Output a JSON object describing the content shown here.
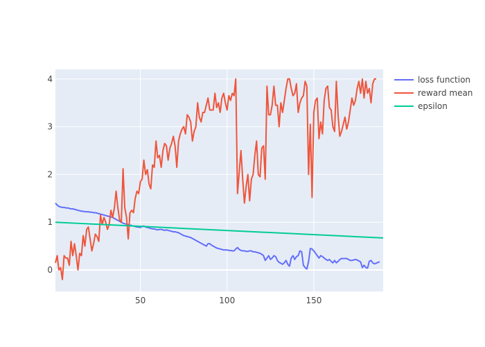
{
  "chart_data": {
    "type": "line",
    "x_start": 1,
    "x_step": 1,
    "xlim": [
      1,
      190
    ],
    "ylim": [
      -0.45,
      4.2
    ],
    "x_ticks": [
      50,
      100,
      150
    ],
    "y_ticks": [
      0,
      1,
      2,
      3,
      4
    ],
    "grid": true,
    "legend_position": "top-right",
    "series": [
      {
        "name": "loss function",
        "color": "#636efa",
        "values": [
          1.4,
          1.36,
          1.33,
          1.32,
          1.31,
          1.31,
          1.3,
          1.3,
          1.29,
          1.28,
          1.28,
          1.27,
          1.26,
          1.25,
          1.24,
          1.23,
          1.23,
          1.22,
          1.22,
          1.22,
          1.21,
          1.21,
          1.2,
          1.2,
          1.19,
          1.18,
          1.17,
          1.16,
          1.15,
          1.14,
          1.13,
          1.12,
          1.11,
          1.1,
          1.08,
          1.06,
          1.04,
          1.02,
          1.0,
          0.98,
          0.97,
          0.96,
          0.95,
          0.94,
          0.93,
          0.92,
          0.91,
          0.9,
          0.9,
          0.89,
          0.91,
          0.92,
          0.9,
          0.89,
          0.88,
          0.87,
          0.86,
          0.86,
          0.85,
          0.84,
          0.85,
          0.85,
          0.84,
          0.83,
          0.84,
          0.83,
          0.82,
          0.81,
          0.8,
          0.8,
          0.79,
          0.78,
          0.76,
          0.74,
          0.72,
          0.71,
          0.7,
          0.69,
          0.68,
          0.66,
          0.64,
          0.62,
          0.6,
          0.58,
          0.56,
          0.54,
          0.52,
          0.5,
          0.55,
          0.55,
          0.52,
          0.5,
          0.48,
          0.46,
          0.45,
          0.44,
          0.43,
          0.42,
          0.42,
          0.42,
          0.41,
          0.41,
          0.4,
          0.4,
          0.44,
          0.47,
          0.43,
          0.41,
          0.4,
          0.4,
          0.39,
          0.39,
          0.4,
          0.4,
          0.38,
          0.38,
          0.37,
          0.36,
          0.35,
          0.33,
          0.3,
          0.2,
          0.25,
          0.3,
          0.22,
          0.25,
          0.3,
          0.28,
          0.2,
          0.16,
          0.14,
          0.12,
          0.15,
          0.2,
          0.12,
          0.08,
          0.25,
          0.3,
          0.22,
          0.28,
          0.3,
          0.4,
          0.38,
          0.1,
          0.05,
          0.02,
          0.18,
          0.45,
          0.44,
          0.4,
          0.35,
          0.3,
          0.25,
          0.3,
          0.28,
          0.25,
          0.22,
          0.2,
          0.22,
          0.18,
          0.15,
          0.2,
          0.15,
          0.18,
          0.22,
          0.24,
          0.24,
          0.24,
          0.24,
          0.22,
          0.2,
          0.2,
          0.21,
          0.22,
          0.21,
          0.19,
          0.17,
          0.05,
          0.1,
          0.05,
          0.04,
          0.18,
          0.2,
          0.15,
          0.13,
          0.14,
          0.16,
          0.17
        ]
      },
      {
        "name": "reward mean",
        "color": "#ef553b",
        "values": [
          0.15,
          0.3,
          0.0,
          0.05,
          -0.2,
          0.3,
          0.25,
          0.25,
          0.1,
          0.6,
          0.3,
          0.55,
          0.3,
          0.0,
          0.35,
          0.3,
          0.72,
          0.5,
          0.85,
          0.9,
          0.65,
          0.4,
          0.55,
          0.75,
          0.7,
          0.6,
          1.15,
          0.95,
          1.1,
          1.0,
          0.85,
          0.95,
          1.25,
          1.1,
          1.3,
          1.65,
          1.3,
          1.05,
          1.0,
          2.12,
          1.3,
          1.1,
          0.65,
          1.2,
          1.25,
          1.2,
          1.5,
          1.65,
          1.6,
          1.85,
          1.9,
          2.3,
          2.0,
          2.1,
          1.8,
          1.7,
          2.2,
          2.15,
          2.7,
          2.35,
          2.4,
          2.15,
          2.5,
          2.65,
          2.6,
          2.3,
          2.55,
          2.65,
          2.8,
          2.6,
          2.15,
          2.7,
          2.85,
          2.95,
          3.0,
          2.85,
          3.25,
          3.2,
          3.1,
          2.7,
          2.9,
          3.0,
          3.5,
          3.2,
          3.1,
          3.3,
          3.3,
          3.45,
          3.6,
          3.35,
          3.35,
          3.35,
          3.7,
          3.4,
          3.5,
          3.3,
          3.6,
          3.7,
          3.5,
          3.35,
          3.65,
          3.55,
          3.7,
          3.65,
          4.0,
          1.6,
          2.05,
          2.5,
          1.9,
          1.4,
          1.75,
          2.0,
          1.45,
          1.9,
          2.0,
          2.4,
          2.7,
          2.0,
          1.95,
          2.55,
          2.6,
          1.9,
          3.85,
          3.25,
          3.25,
          3.45,
          3.85,
          3.45,
          3.45,
          3.0,
          3.5,
          3.3,
          3.55,
          3.8,
          4.0,
          4.0,
          3.8,
          3.65,
          3.7,
          3.9,
          3.3,
          3.5,
          3.6,
          3.65,
          3.95,
          3.85,
          2.0,
          3.05,
          1.52,
          3.3,
          3.55,
          3.6,
          2.75,
          3.1,
          2.85,
          3.55,
          3.8,
          3.85,
          3.4,
          3.35,
          3.0,
          2.9,
          3.95,
          3.25,
          2.8,
          2.9,
          3.05,
          3.2,
          2.95,
          3.1,
          3.35,
          3.6,
          3.45,
          3.55,
          3.8,
          3.95,
          3.7,
          4.0,
          3.6,
          3.95,
          3.7,
          3.8,
          3.5,
          3.9,
          4.0,
          4.0
        ]
      },
      {
        "name": "epsilon",
        "color": "#00cc96",
        "values_start": 1.0,
        "values_end": 0.67
      }
    ]
  }
}
